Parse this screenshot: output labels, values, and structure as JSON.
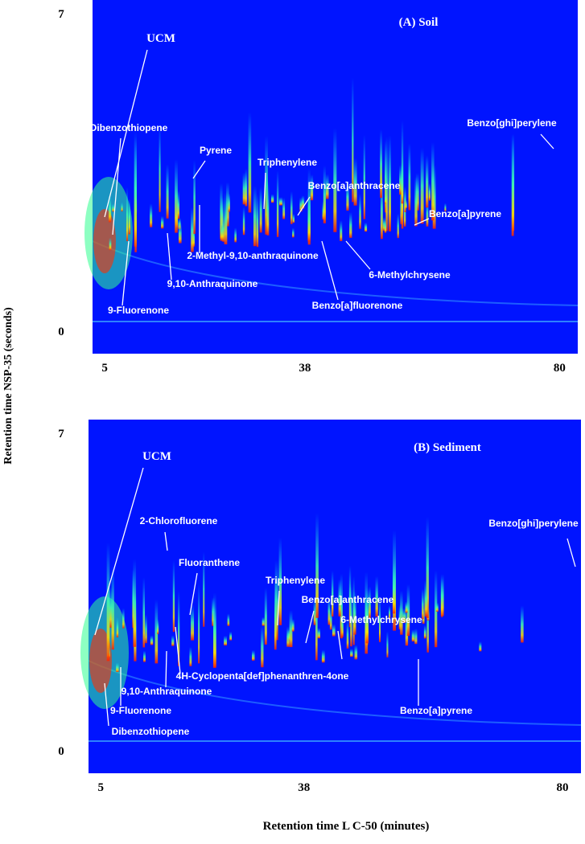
{
  "y_label": "Retention time NSP-35 (seconds)",
  "x_label": "Retention time L C-50 (minutes)",
  "chart_data": [
    {
      "type": "chromatogram",
      "title": "(A) Soil",
      "xlim": [
        3,
        83
      ],
      "ylim": [
        -0.5,
        7.3
      ],
      "xticks": [
        5,
        38,
        80
      ],
      "yticks": [
        0,
        7
      ],
      "annotations": [
        "UCM",
        "Dibenzothiopene",
        "Pyrene",
        "Triphenylene",
        "Benzo[a]anthracene",
        "Benzo[a]pyrene",
        "Benzo[ghi]perylene",
        "2-Methyl-9,10-anthraquinone",
        "9,10-Anthraquinone",
        "6-Methylchrysene",
        "Benzo[a]fluorenone",
        "9-Fluorenone"
      ]
    },
    {
      "type": "chromatogram",
      "title": "(B) Sediment",
      "xlim": [
        3,
        83
      ],
      "ylim": [
        -0.5,
        7.3
      ],
      "xticks": [
        5,
        38,
        80
      ],
      "yticks": [
        0,
        7
      ],
      "annotations": [
        "UCM",
        "2-Chlorofluorene",
        "Fluoranthene",
        "Benzo[ghi]perylene",
        "Triphenylene",
        "Benzo[a]anthracene",
        "6-Methylchrysene",
        "4H-Cyclopenta[def]phenanthren-4one",
        "9,10-Anthraquinone",
        "9-Fluorenone",
        "Dibenzothiopene",
        "Benzo[a]pyrene"
      ]
    }
  ]
}
